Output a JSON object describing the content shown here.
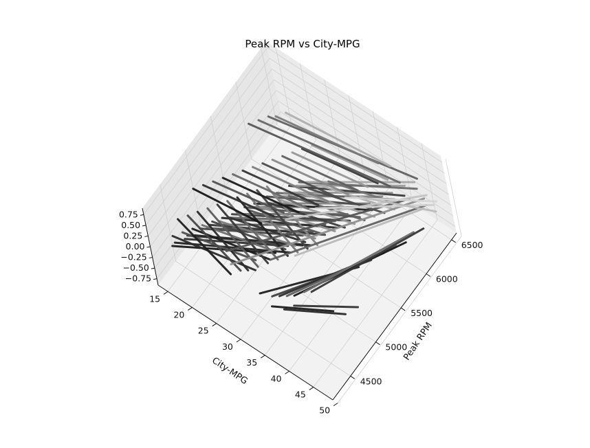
{
  "chart_data": {
    "type": "line",
    "projection": "3d",
    "title": "Peak RPM vs City-MPG",
    "xlabel": "City-MPG",
    "ylabel": "Peak RPM",
    "zlabel": "",
    "xlim": [
      13,
      49
    ],
    "ylim": [
      4150,
      6600
    ],
    "zlim": [
      -0.9,
      0.9
    ],
    "xticks": [
      "15",
      "20",
      "25",
      "30",
      "35",
      "40",
      "45",
      "50"
    ],
    "yticks": [
      "4500",
      "5000",
      "5500",
      "6000",
      "6500"
    ],
    "zticks": [
      "0.75",
      "0.50",
      "0.25",
      "0.00",
      "−0.25",
      "−0.50",
      "−0.75"
    ],
    "grid": true,
    "colormap": "grayscale",
    "segments": [
      {
        "x": [
          16,
          31
        ],
        "y": [
          4300,
          4900
        ],
        "shade": "#1a1a1a"
      },
      {
        "x": [
          16,
          33
        ],
        "y": [
          4350,
          5000
        ],
        "shade": "#222222"
      },
      {
        "x": [
          17,
          32
        ],
        "y": [
          4450,
          5050
        ],
        "shade": "#2e2e2e"
      },
      {
        "x": [
          17,
          34
        ],
        "y": [
          4500,
          5150
        ],
        "shade": "#3a3a3a"
      },
      {
        "x": [
          18,
          35
        ],
        "y": [
          4550,
          5200
        ],
        "shade": "#262626"
      },
      {
        "x": [
          18,
          33
        ],
        "y": [
          4650,
          5250
        ],
        "shade": "#444444"
      },
      {
        "x": [
          19,
          34
        ],
        "y": [
          4700,
          5350
        ],
        "shade": "#4f4f4f"
      },
      {
        "x": [
          19,
          36
        ],
        "y": [
          4750,
          5400
        ],
        "shade": "#333333"
      },
      {
        "x": [
          20,
          35
        ],
        "y": [
          4800,
          5500
        ],
        "shade": "#5a5a5a"
      },
      {
        "x": [
          20,
          37
        ],
        "y": [
          4900,
          5550
        ],
        "shade": "#2a2a2a"
      },
      {
        "x": [
          21,
          36
        ],
        "y": [
          4950,
          5600
        ],
        "shade": "#666666"
      },
      {
        "x": [
          21,
          38
        ],
        "y": [
          5000,
          5700
        ],
        "shade": "#3f3f3f"
      },
      {
        "x": [
          22,
          37
        ],
        "y": [
          5050,
          5750
        ],
        "shade": "#707070"
      },
      {
        "x": [
          22,
          39
        ],
        "y": [
          5150,
          5800
        ],
        "shade": "#555555"
      },
      {
        "x": [
          23,
          38
        ],
        "y": [
          5200,
          5900
        ],
        "shade": "#7a7a7a"
      },
      {
        "x": [
          23,
          40
        ],
        "y": [
          5250,
          5950
        ],
        "shade": "#1f1f1f"
      },
      {
        "x": [
          24,
          39
        ],
        "y": [
          5300,
          6000
        ],
        "shade": "#838383"
      },
      {
        "x": [
          24,
          41
        ],
        "y": [
          5400,
          6050
        ],
        "shade": "#4a4a4a"
      },
      {
        "x": [
          25,
          40
        ],
        "y": [
          5450,
          6150
        ],
        "shade": "#8c8c8c"
      },
      {
        "x": [
          25,
          42
        ],
        "y": [
          5500,
          6200
        ],
        "shade": "#606060"
      },
      {
        "x": [
          26,
          41
        ],
        "y": [
          5550,
          6250
        ],
        "shade": "#959595"
      },
      {
        "x": [
          26,
          43
        ],
        "y": [
          5650,
          6300
        ],
        "shade": "#3c3c3c"
      },
      {
        "x": [
          27,
          42
        ],
        "y": [
          5700,
          6400
        ],
        "shade": "#9e9e9e"
      },
      {
        "x": [
          27,
          44
        ],
        "y": [
          5750,
          6450
        ],
        "shade": "#6b6b6b"
      },
      {
        "x": [
          28,
          43
        ],
        "y": [
          5800,
          6500
        ],
        "shade": "#a8a8a8"
      },
      {
        "x": [
          15,
          30
        ],
        "y": [
          4400,
          4600
        ],
        "shade": "#2b2b2b"
      },
      {
        "x": [
          16,
          29
        ],
        "y": [
          4500,
          4700
        ],
        "shade": "#505050"
      },
      {
        "x": [
          17,
          31
        ],
        "y": [
          4600,
          4800
        ],
        "shade": "#1c1c1c"
      },
      {
        "x": [
          18,
          30
        ],
        "y": [
          4700,
          4900
        ],
        "shade": "#6e6e6e"
      },
      {
        "x": [
          19,
          32
        ],
        "y": [
          4800,
          5000
        ],
        "shade": "#454545"
      },
      {
        "x": [
          20,
          33
        ],
        "y": [
          4850,
          5100
        ],
        "shade": "#7d7d7d"
      },
      {
        "x": [
          21,
          34
        ],
        "y": [
          4950,
          5200
        ],
        "shade": "#303030"
      },
      {
        "x": [
          22,
          35
        ],
        "y": [
          5050,
          5300
        ],
        "shade": "#888888"
      },
      {
        "x": [
          23,
          36
        ],
        "y": [
          5150,
          5400
        ],
        "shade": "#585858"
      },
      {
        "x": [
          24,
          37
        ],
        "y": [
          5250,
          5500
        ],
        "shade": "#929292"
      },
      {
        "x": [
          25,
          38
        ],
        "y": [
          5350,
          5600
        ],
        "shade": "#3d3d3d"
      },
      {
        "x": [
          26,
          39
        ],
        "y": [
          5450,
          5700
        ],
        "shade": "#9b9b9b"
      },
      {
        "x": [
          27,
          40
        ],
        "y": [
          5550,
          5800
        ],
        "shade": "#646464"
      },
      {
        "x": [
          28,
          41
        ],
        "y": [
          5650,
          5900
        ],
        "shade": "#a3a3a3"
      },
      {
        "x": [
          29,
          42
        ],
        "y": [
          5750,
          6000
        ],
        "shade": "#4b4b4b"
      },
      {
        "x": [
          30,
          43
        ],
        "y": [
          5850,
          6100
        ],
        "shade": "#adadad"
      },
      {
        "x": [
          31,
          44
        ],
        "y": [
          5950,
          6200
        ],
        "shade": "#737373"
      },
      {
        "x": [
          14,
          27
        ],
        "y": [
          4600,
          4400
        ],
        "shade": "#1e1e1e"
      },
      {
        "x": [
          15,
          28
        ],
        "y": [
          4700,
          4500
        ],
        "shade": "#474747"
      },
      {
        "x": [
          16,
          29
        ],
        "y": [
          4800,
          4550
        ],
        "shade": "#2c2c2c"
      },
      {
        "x": [
          17,
          30
        ],
        "y": [
          4900,
          4650
        ],
        "shade": "#5c5c5c"
      },
      {
        "x": [
          18,
          31
        ],
        "y": [
          5000,
          4750
        ],
        "shade": "#383838"
      },
      {
        "x": [
          19,
          32
        ],
        "y": [
          5100,
          4850
        ],
        "shade": "#676767"
      },
      {
        "x": [
          20,
          33
        ],
        "y": [
          5200,
          4950
        ],
        "shade": "#242424"
      },
      {
        "x": [
          21,
          34
        ],
        "y": [
          5300,
          5050
        ],
        "shade": "#777777"
      },
      {
        "x": [
          22,
          35
        ],
        "y": [
          5400,
          5150
        ],
        "shade": "#414141"
      },
      {
        "x": [
          23,
          36
        ],
        "y": [
          5500,
          5250
        ],
        "shade": "#848484"
      },
      {
        "x": [
          13,
          26
        ],
        "y": [
          5000,
          5100
        ],
        "shade": "#161616"
      },
      {
        "x": [
          14,
          27
        ],
        "y": [
          5100,
          5250
        ],
        "shade": "#2f2f2f"
      },
      {
        "x": [
          15,
          28
        ],
        "y": [
          5200,
          5350
        ],
        "shade": "#525252"
      },
      {
        "x": [
          16,
          30
        ],
        "y": [
          5300,
          5450
        ],
        "shade": "#1b1b1b"
      },
      {
        "x": [
          17,
          31
        ],
        "y": [
          5400,
          5550
        ],
        "shade": "#6a6a6a"
      },
      {
        "x": [
          18,
          32
        ],
        "y": [
          5500,
          5650
        ],
        "shade": "#353535"
      },
      {
        "x": [
          19,
          33
        ],
        "y": [
          5600,
          5750
        ],
        "shade": "#7f7f7f"
      },
      {
        "x": [
          20,
          34
        ],
        "y": [
          5700,
          5850
        ],
        "shade": "#4d4d4d"
      },
      {
        "x": [
          21,
          35
        ],
        "y": [
          5800,
          5950
        ],
        "shade": "#8a8a8a"
      },
      {
        "x": [
          22,
          36
        ],
        "y": [
          5900,
          6050
        ],
        "shade": "#5f5f5f"
      },
      {
        "x": [
          23,
          37
        ],
        "y": [
          6000,
          6150
        ],
        "shade": "#979797"
      },
      {
        "x": [
          24,
          38
        ],
        "y": [
          6100,
          6250
        ],
        "shade": "#3b3b3b"
      },
      {
        "x": [
          25,
          39
        ],
        "y": [
          6200,
          6350
        ],
        "shade": "#a0a0a0"
      },
      {
        "x": [
          14,
          40
        ],
        "y": [
          6000,
          6300
        ],
        "shade": "#575757"
      },
      {
        "x": [
          15,
          41
        ],
        "y": [
          6100,
          6400
        ],
        "shade": "#696969"
      },
      {
        "x": [
          16,
          43
        ],
        "y": [
          6200,
          6550
        ],
        "shade": "#626262"
      },
      {
        "x": [
          17,
          36
        ],
        "y": [
          6250,
          6450
        ],
        "shade": "#7b7b7b"
      },
      {
        "x": [
          18,
          38
        ],
        "y": [
          6350,
          6500
        ],
        "shade": "#b0b0b0"
      },
      {
        "x": [
          33,
          44
        ],
        "y": [
          4400,
          5300
        ],
        "shade": "#202020"
      },
      {
        "x": [
          35,
          45
        ],
        "y": [
          4450,
          5450
        ],
        "shade": "#404040"
      },
      {
        "x": [
          36,
          46
        ],
        "y": [
          4500,
          5600
        ],
        "shade": "#2d2d2d"
      },
      {
        "x": [
          37,
          47
        ],
        "y": [
          4550,
          5750
        ],
        "shade": "#5e5e5e"
      },
      {
        "x": [
          38,
          48
        ],
        "y": [
          4600,
          5850
        ],
        "shade": "#191919"
      },
      {
        "x": [
          39,
          48
        ],
        "y": [
          4700,
          6000
        ],
        "shade": "#6d6d6d"
      },
      {
        "x": [
          40,
          49
        ],
        "y": [
          4750,
          6100
        ],
        "shade": "#373737"
      },
      {
        "x": [
          36,
          45
        ],
        "y": [
          4350,
          4700
        ],
        "shade": "#1d1d1d"
      },
      {
        "x": [
          38,
          47
        ],
        "y": [
          4400,
          4750
        ],
        "shade": "#292929"
      },
      {
        "x": [
          39,
          48
        ],
        "y": [
          4500,
          4900
        ],
        "shade": "#333333"
      },
      {
        "x": [
          24,
          44
        ],
        "y": [
          4600,
          6300
        ],
        "shade": "#555555"
      },
      {
        "x": [
          26,
          46
        ],
        "y": [
          4500,
          6400
        ],
        "shade": "#8f8f8f"
      },
      {
        "x": [
          31,
          47
        ],
        "y": [
          4800,
          6350
        ],
        "shade": "#616161"
      },
      {
        "x": [
          34,
          47
        ],
        "y": [
          5000,
          6300
        ],
        "shade": "#bababa"
      },
      {
        "x": [
          29,
          46
        ],
        "y": [
          5300,
          6450
        ],
        "shade": "#c4c4c4"
      },
      {
        "x": [
          32,
          48
        ],
        "y": [
          5600,
          6400
        ],
        "shade": "#cfcfcf"
      },
      {
        "x": [
          35,
          48
        ],
        "y": [
          5900,
          6450
        ],
        "shade": "#d6d6d6"
      },
      {
        "x": [
          37,
          49
        ],
        "y": [
          6000,
          6350
        ],
        "shade": "#bdbdbd"
      }
    ]
  }
}
